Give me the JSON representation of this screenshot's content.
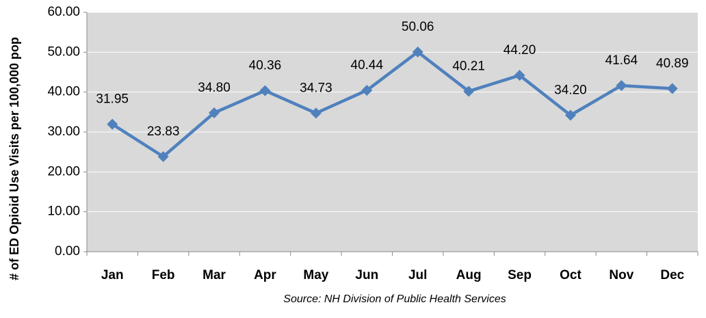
{
  "chart_data": {
    "type": "line",
    "y_axis_label": "# of ED Opioid Use Visits per 100,000 pop",
    "source": "Source: NH Division of Public Health Services",
    "categories": [
      "Jan",
      "Feb",
      "Mar",
      "Apr",
      "May",
      "Jun",
      "Jul",
      "Aug",
      "Sep",
      "Oct",
      "Nov",
      "Dec"
    ],
    "series": [
      {
        "name": "ED Opioid Use Visits",
        "color": "#4f81bd",
        "values": [
          31.95,
          23.83,
          34.8,
          40.36,
          34.73,
          40.44,
          50.06,
          40.21,
          44.2,
          34.2,
          41.64,
          40.89
        ],
        "value_labels": [
          "31.95",
          "23.83",
          "34.80",
          "40.36",
          "34.73",
          "40.44",
          "50.06",
          "40.21",
          "44.20",
          "34.20",
          "41.64",
          "40.89"
        ]
      }
    ],
    "ylim": [
      0,
      60
    ],
    "yticks": [
      {
        "value": 0,
        "label": "0.00"
      },
      {
        "value": 10,
        "label": "10.00"
      },
      {
        "value": 20,
        "label": "20.00"
      },
      {
        "value": 30,
        "label": "30.00"
      },
      {
        "value": 40,
        "label": "40.00"
      },
      {
        "value": 50,
        "label": "50.00"
      },
      {
        "value": 60,
        "label": "60.00"
      }
    ],
    "grid": true,
    "background": "#d9d9d9"
  }
}
